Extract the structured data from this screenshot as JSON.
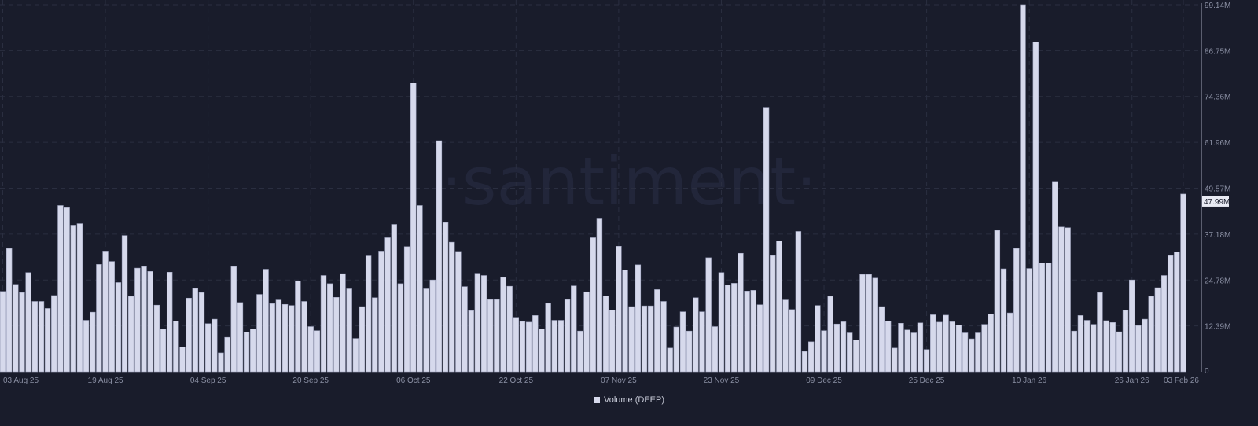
{
  "chart_data": {
    "type": "bar",
    "title": "",
    "date_range": [
      "2025-08-03",
      "2026-02-03"
    ],
    "interval": "1 day",
    "series": [
      {
        "name": "Volume (DEEP)",
        "color": "#d6d9ec",
        "unit": "M",
        "values": [
          21.7,
          33.3,
          23.6,
          21.4,
          26.8,
          19.0,
          19.0,
          17.1,
          20.6,
          44.9,
          44.3,
          39.6,
          40.0,
          13.9,
          16.1,
          29.0,
          32.6,
          29.8,
          24.1,
          36.8,
          20.4,
          28.0,
          28.4,
          27.1,
          18.0,
          11.5,
          26.9,
          13.7,
          6.7,
          19.9,
          22.5,
          21.4,
          13.0,
          14.2,
          5.1,
          9.3,
          28.4,
          18.7,
          10.7,
          11.6,
          20.9,
          27.7,
          18.4,
          19.4,
          18.2,
          17.9,
          24.5,
          19.0,
          12.2,
          11.1,
          26.0,
          23.8,
          20.1,
          26.5,
          22.4,
          9.0,
          17.6,
          31.3,
          20.0,
          32.6,
          36.2,
          39.8,
          23.8,
          33.8,
          78.0,
          44.9,
          22.4,
          24.8,
          62.4,
          40.3,
          35.0,
          32.5,
          23.0,
          16.5,
          26.6,
          26.0,
          19.5,
          19.5,
          25.5,
          23.1,
          14.7,
          13.6,
          13.4,
          15.2,
          11.6,
          18.5,
          13.9,
          13.9,
          19.5,
          23.2,
          11.0,
          21.6,
          36.2,
          41.5,
          20.5,
          16.7,
          33.9,
          27.5,
          17.6,
          28.9,
          17.8,
          17.8,
          22.2,
          19.0,
          6.4,
          12.1,
          16.2,
          11.0,
          20.0,
          16.2,
          30.8,
          12.2,
          26.8,
          23.4,
          23.9,
          32.0,
          21.8,
          22.0,
          18.1,
          71.4,
          31.4,
          35.3,
          19.4,
          16.8,
          37.9,
          5.5,
          8.1,
          17.9,
          11.1,
          20.4,
          12.9,
          13.5,
          10.5,
          8.6,
          26.3,
          26.3,
          25.3,
          17.6,
          13.7,
          6.4,
          13.1,
          11.3,
          10.5,
          13.2,
          6.0,
          15.4,
          13.4,
          15.3,
          13.5,
          12.6,
          10.5,
          8.9,
          10.5,
          12.8,
          15.6,
          38.2,
          27.8,
          15.9,
          33.3,
          99.14,
          27.9,
          89.1,
          29.4,
          29.4,
          51.4,
          39.1,
          38.9,
          11.0,
          15.2,
          13.9,
          12.8,
          21.4,
          13.8,
          13.3,
          10.8,
          16.6,
          24.8,
          12.5,
          14.2,
          20.4,
          22.7,
          26.0,
          31.4,
          32.4,
          47.99
        ]
      }
    ],
    "x_tick_labels": [
      "03 Aug 25",
      "19 Aug 25",
      "04 Sep 25",
      "20 Sep 25",
      "06 Oct 25",
      "22 Oct 25",
      "07 Nov 25",
      "23 Nov 25",
      "09 Dec 25",
      "25 Dec 25",
      "10 Jan 26",
      "26 Jan 26",
      "03 Feb 26"
    ],
    "x_tick_every_days": 16,
    "y_tick_labels": [
      "0",
      "12.39M",
      "24.78M",
      "37.18M",
      "49.57M",
      "61.96M",
      "74.36M",
      "86.75M",
      "99.14M"
    ],
    "y_tick_values": [
      0,
      12.39,
      24.78,
      37.18,
      49.57,
      61.96,
      74.36,
      86.75,
      99.14
    ],
    "ylim": [
      0,
      99.14
    ],
    "y_axis_position": "right",
    "last_value_label": "47.99M",
    "grid": true,
    "legend_position": "bottom-center",
    "watermark": "·santiment·"
  },
  "colors": {
    "background": "#191c2b",
    "bar": "#d6d9ec",
    "grid": "#2a2e40",
    "axis_text": "#8a8fa3"
  }
}
